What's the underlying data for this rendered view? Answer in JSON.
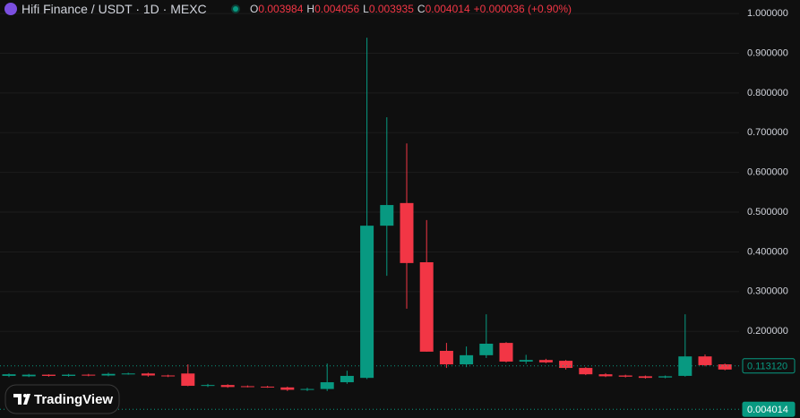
{
  "chart_data": {
    "type": "candlestick",
    "title": "Hifi Finance / USDT · 1D · MEXC",
    "ohlc_legend": [
      {
        "label": "O",
        "value": 0.003984
      },
      {
        "label": "H",
        "value": 0.004056
      },
      {
        "label": "L",
        "value": 0.003935
      },
      {
        "label": "C",
        "value": 0.004014
      }
    ],
    "change_label": "+0.000036 (+0.90%)",
    "up_color": "#089981",
    "down_color": "#f23645",
    "open": [
      0.088,
      0.087,
      0.091,
      0.088,
      0.091,
      0.089,
      0.093,
      0.094,
      0.089,
      0.094,
      0.063,
      0.065,
      0.062,
      0.061,
      0.059,
      0.053,
      0.055,
      0.072,
      0.083,
      0.466,
      0.523,
      0.374,
      0.151,
      0.117,
      0.14,
      0.171,
      0.124,
      0.128,
      0.126,
      0.108,
      0.092,
      0.089,
      0.087,
      0.084,
      0.088,
      0.137,
      0.117
    ],
    "high": [
      0.094,
      0.093,
      0.092,
      0.093,
      0.093,
      0.096,
      0.096,
      0.096,
      0.091,
      0.117,
      0.068,
      0.067,
      0.064,
      0.063,
      0.061,
      0.058,
      0.119,
      0.101,
      0.939,
      0.739,
      0.673,
      0.48,
      0.171,
      0.162,
      0.243,
      0.173,
      0.141,
      0.131,
      0.128,
      0.11,
      0.095,
      0.091,
      0.089,
      0.089,
      0.243,
      0.142,
      0.119
    ],
    "low": [
      0.085,
      0.085,
      0.086,
      0.086,
      0.087,
      0.087,
      0.091,
      0.086,
      0.085,
      0.062,
      0.06,
      0.058,
      0.059,
      0.058,
      0.05,
      0.05,
      0.05,
      0.068,
      0.08,
      0.34,
      0.257,
      0.149,
      0.108,
      0.11,
      0.133,
      0.122,
      0.118,
      0.12,
      0.104,
      0.09,
      0.085,
      0.084,
      0.081,
      0.082,
      0.086,
      0.112,
      0.102
    ],
    "close": [
      0.092,
      0.091,
      0.088,
      0.091,
      0.089,
      0.093,
      0.094,
      0.089,
      0.087,
      0.063,
      0.065,
      0.06,
      0.061,
      0.059,
      0.053,
      0.055,
      0.072,
      0.088,
      0.466,
      0.518,
      0.372,
      0.149,
      0.117,
      0.14,
      0.169,
      0.124,
      0.128,
      0.122,
      0.108,
      0.092,
      0.087,
      0.086,
      0.083,
      0.087,
      0.137,
      0.115,
      0.104
    ],
    "ylim": [
      -0.018,
      1.034
    ],
    "yticks": [
      {
        "value": 0.2,
        "label": "0.200000"
      },
      {
        "value": 0.3,
        "label": "0.300000"
      },
      {
        "value": 0.4,
        "label": "0.400000"
      },
      {
        "value": 0.5,
        "label": "0.500000"
      },
      {
        "value": 0.6,
        "label": "0.600000"
      },
      {
        "value": 0.7,
        "label": "0.700000"
      },
      {
        "value": 0.8,
        "label": "0.800000"
      },
      {
        "value": 0.9,
        "label": "0.900000"
      },
      {
        "value": 1.0,
        "label": "1.000000"
      }
    ],
    "grid": true,
    "price_labels": [
      {
        "value": 0.11312,
        "label": "0.113120",
        "style": "outline"
      },
      {
        "value": 0.004014,
        "label": "0.004014",
        "style": "filled"
      }
    ]
  },
  "brand": "TradingView"
}
